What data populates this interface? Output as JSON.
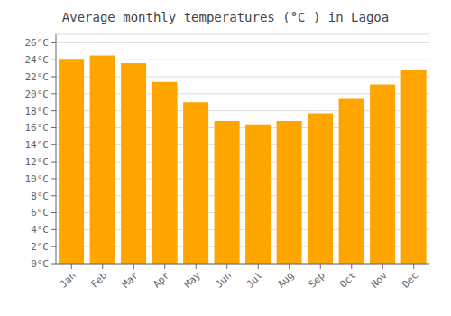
{
  "chart_data": {
    "type": "bar",
    "title": "Average monthly temperatures (°C ) in Lagoa",
    "categories": [
      "Jan",
      "Feb",
      "Mar",
      "Apr",
      "May",
      "Jun",
      "Jul",
      "Aug",
      "Sep",
      "Oct",
      "Nov",
      "Dec"
    ],
    "values": [
      24.1,
      24.5,
      23.6,
      21.4,
      19.0,
      16.8,
      16.4,
      16.8,
      17.7,
      19.4,
      21.1,
      22.8
    ],
    "color": "#FFA500",
    "ylim": [
      0,
      27
    ],
    "yticks": [
      {
        "value": 0,
        "label": "0°C"
      },
      {
        "value": 2,
        "label": "2°C"
      },
      {
        "value": 4,
        "label": "4°C"
      },
      {
        "value": 6,
        "label": "6°C"
      },
      {
        "value": 8,
        "label": "8°C"
      },
      {
        "value": 10,
        "label": "10°C"
      },
      {
        "value": 12,
        "label": "12°C"
      },
      {
        "value": 14,
        "label": "14°C"
      },
      {
        "value": 16,
        "label": "16°C"
      },
      {
        "value": 18,
        "label": "18°C"
      },
      {
        "value": 20,
        "label": "20°C"
      },
      {
        "value": 22,
        "label": "22°C"
      },
      {
        "value": 24,
        "label": "24°C"
      },
      {
        "value": 26,
        "label": "26°C"
      }
    ],
    "grid": true
  }
}
